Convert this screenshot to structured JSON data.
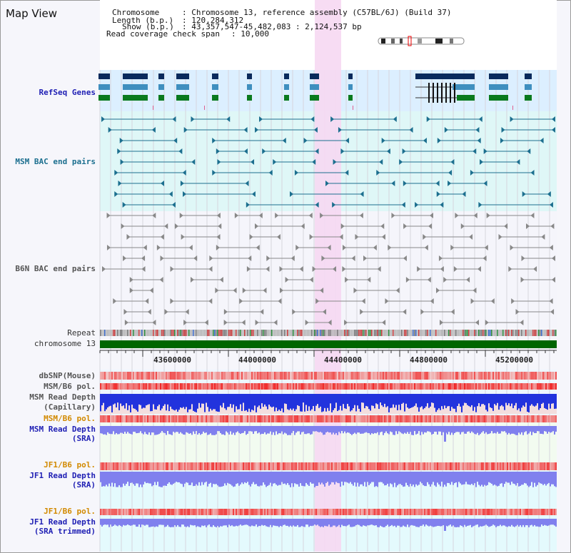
{
  "view_title": "Map View",
  "header": {
    "chromosome_key": "Chromosome",
    "chromosome_val": ": Chromosome 13, reference assembly (C57BL/6J) (Build 37)",
    "length_key": "Length (b.p.)",
    "length_val": ": 120,284,312",
    "show_key": "Show (b.p.)",
    "show_val": ": 43,357,547-45,482,083 : 2,124,537 bp",
    "coverage_key": "Read coverage check span",
    "coverage_val": ": 10,000"
  },
  "track_labels": {
    "refseq": "RefSeq Genes",
    "msm_bac": "MSM BAC end pairs",
    "b6n_bac": "B6N BAC end pairs",
    "repeat": "Repeat",
    "chromosome": "chromosome 13",
    "dbsnp": "dbSNP(Mouse)",
    "msm_b6_pol_1": "MSM/B6 pol.",
    "msm_depth_cap_1": "MSM Read Depth",
    "msm_depth_cap_2": "(Capillary)",
    "msm_b6_pol_2": "MSM/B6 pol.",
    "msm_depth_sra_1": "MSM Read Depth",
    "msm_depth_sra_2": "(SRA)",
    "jf1_b6_pol_1": "JF1/B6 pol.",
    "jf1_depth_sra_1": "JF1 Read Depth",
    "jf1_depth_sra_2": "(SRA)",
    "jf1_b6_pol_2": "JF1/B6 pol.",
    "jf1_depth_trim_1": "JF1 Read Depth",
    "jf1_depth_trim_2": "(SRA trimmed)"
  },
  "axis_ticks": [
    "43600000",
    "44000000",
    "44400000",
    "44800000",
    "45200000"
  ],
  "colors": {
    "refseq_bg": "#dcefff",
    "msm_bg": "#dff7f7",
    "highlight": "#f6d8f2",
    "gene_dark": "#0a2a5c",
    "gene_mid": "#3f8fbf",
    "gene_green": "#0a7a1e",
    "msm_pair": "#1c6f8f",
    "b6n_pair": "#888888",
    "chrom_bar": "#006600",
    "depth_blue": "#2233dd",
    "depth_light": "#8080ee"
  }
}
